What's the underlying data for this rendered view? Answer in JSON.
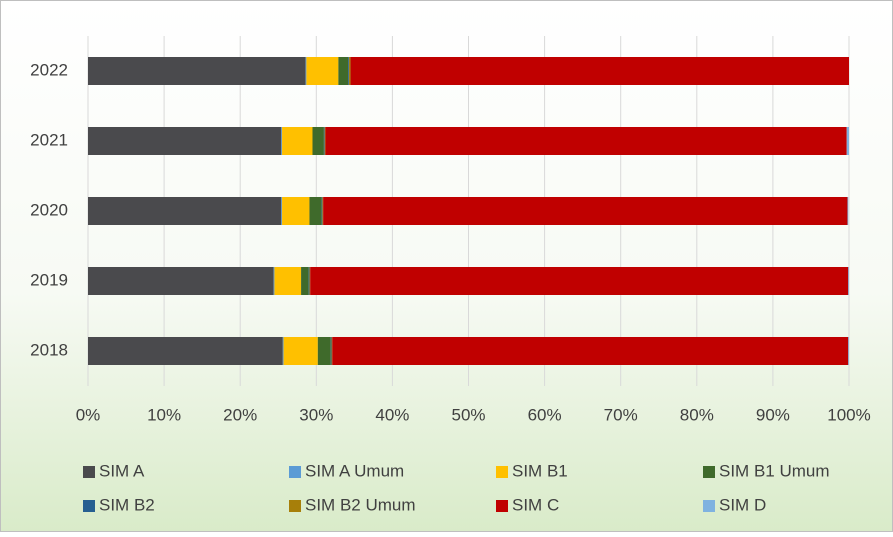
{
  "chart_data": {
    "type": "stacked_barh",
    "categories": [
      "2018",
      "2019",
      "2020",
      "2021",
      "2022"
    ],
    "series": [
      {
        "name": "SIM A",
        "color": "#4a4a4d",
        "values": [
          25.6,
          24.4,
          25.4,
          25.4,
          28.6
        ]
      },
      {
        "name": "SIM A Umum",
        "color": "#5b9bd5",
        "values": [
          0.1,
          0.1,
          0.1,
          0.1,
          0.1
        ]
      },
      {
        "name": "SIM B1",
        "color": "#ffc000",
        "values": [
          4.5,
          3.5,
          3.6,
          4.0,
          4.2
        ]
      },
      {
        "name": "SIM B1 Umum",
        "color": "#3f6a2b",
        "values": [
          1.7,
          1.0,
          1.6,
          1.5,
          1.3
        ]
      },
      {
        "name": "SIM B2",
        "color": "#265f91",
        "values": [
          0.1,
          0.1,
          0.1,
          0.1,
          0.1
        ]
      },
      {
        "name": "SIM B2 Umum",
        "color": "#a77f0a",
        "values": [
          0.1,
          0.1,
          0.1,
          0.1,
          0.2
        ]
      },
      {
        "name": "SIM C",
        "color": "#c00000",
        "values": [
          67.8,
          70.7,
          68.9,
          68.5,
          65.5
        ]
      },
      {
        "name": "SIM D",
        "color": "#7fb2e0",
        "values": [
          0.1,
          0.1,
          0.1,
          0.3,
          0.0
        ]
      }
    ],
    "xlim": [
      0,
      100
    ],
    "xticks": [
      {
        "value": 0,
        "label": "0%"
      },
      {
        "value": 10,
        "label": "10%"
      },
      {
        "value": 20,
        "label": "20%"
      },
      {
        "value": 30,
        "label": "30%"
      },
      {
        "value": 40,
        "label": "40%"
      },
      {
        "value": 50,
        "label": "50%"
      },
      {
        "value": 60,
        "label": "60%"
      },
      {
        "value": 70,
        "label": "70%"
      },
      {
        "value": 80,
        "label": "80%"
      },
      {
        "value": 90,
        "label": "90%"
      },
      {
        "value": 100,
        "label": "100%"
      }
    ],
    "grid": true,
    "legend": "bottom"
  }
}
